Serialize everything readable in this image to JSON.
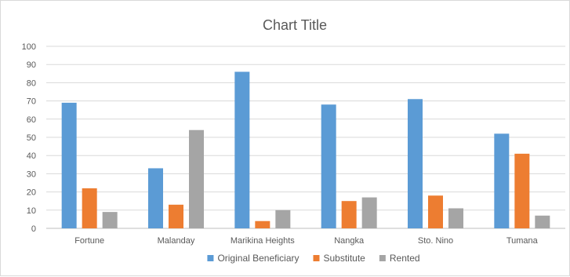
{
  "chart_data": {
    "type": "bar",
    "title": "Chart Title",
    "xlabel": "",
    "ylabel": "",
    "ylim": [
      0,
      100
    ],
    "ytick_step": 10,
    "grid": true,
    "legend_position": "bottom",
    "categories": [
      "Fortune",
      "Malanday",
      "Marikina Heights",
      "Nangka",
      "Sto. Nino",
      "Tumana"
    ],
    "series": [
      {
        "name": "Original Beneficiary",
        "color": "#5b9bd5",
        "values": [
          69,
          33,
          86,
          68,
          71,
          52
        ]
      },
      {
        "name": "Substitute",
        "color": "#ed7d31",
        "values": [
          22,
          13,
          4,
          15,
          18,
          41
        ]
      },
      {
        "name": "Rented",
        "color": "#a5a5a5",
        "values": [
          9,
          54,
          10,
          17,
          11,
          7
        ]
      }
    ]
  }
}
